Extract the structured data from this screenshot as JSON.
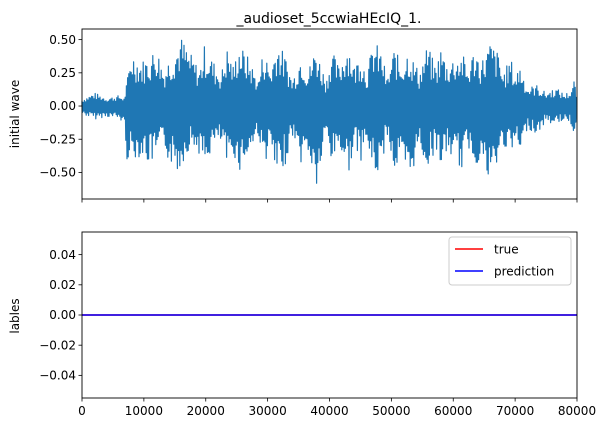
{
  "chart_data": [
    {
      "type": "line",
      "title": "_audioset_5ccwiaHEcIQ_1.",
      "ylabel": "initial wave",
      "xlim": [
        0,
        80000
      ],
      "ylim": [
        -0.7,
        0.58
      ],
      "y_ticks": [
        "0.50",
        "0.25",
        "0.00",
        "−0.25",
        "−0.50"
      ],
      "y_tick_values": [
        0.5,
        0.25,
        0.0,
        -0.25,
        -0.5
      ],
      "x_tick_labels_shown": false,
      "series": [
        {
          "color": "#1f77b4",
          "envelope": {
            "x": [
              0,
              2000,
              4000,
              6000,
              6800,
              7300,
              8000,
              9500,
              11000,
              12000,
              13200,
              14000,
              15500,
              16000,
              17500,
              19000,
              19800,
              21000,
              22500,
              23500,
              24500,
              25300,
              27000,
              28500,
              29300,
              30500,
              31500,
              33000,
              34000,
              35500,
              36500,
              37800,
              38300,
              39500,
              40300,
              41500,
              43000,
              44000,
              45000,
              46000,
              47200,
              48500,
              49300,
              50500,
              51500,
              52800,
              53300,
              54500,
              55800,
              57200,
              58000,
              59000,
              60300,
              61500,
              62300,
              63500,
              64500,
              65600,
              66000,
              67300,
              68000,
              69300,
              70000,
              70800,
              72000,
              73500,
              75000,
              76500,
              78000,
              79000,
              79500,
              80000
            ],
            "max": [
              0.05,
              0.1,
              0.06,
              0.08,
              0.06,
              0.2,
              0.42,
              0.34,
              0.38,
              0.46,
              0.28,
              0.36,
              0.48,
              0.53,
              0.4,
              0.28,
              0.46,
              0.36,
              0.25,
              0.45,
              0.3,
              0.48,
              0.36,
              0.2,
              0.43,
              0.28,
              0.51,
              0.36,
              0.2,
              0.42,
              0.26,
              0.46,
              0.37,
              0.2,
              0.43,
              0.3,
              0.5,
              0.3,
              0.42,
              0.26,
              0.5,
              0.4,
              0.2,
              0.45,
              0.32,
              0.45,
              0.38,
              0.26,
              0.46,
              0.3,
              0.45,
              0.33,
              0.38,
              0.4,
              0.28,
              0.45,
              0.34,
              0.45,
              0.49,
              0.4,
              0.25,
              0.36,
              0.24,
              0.32,
              0.14,
              0.16,
              0.1,
              0.14,
              0.09,
              0.12,
              0.2,
              0.1
            ],
            "min": [
              -0.06,
              -0.1,
              -0.08,
              -0.1,
              -0.14,
              -0.42,
              -0.4,
              -0.38,
              -0.45,
              -0.4,
              -0.3,
              -0.42,
              -0.5,
              -0.46,
              -0.3,
              -0.36,
              -0.5,
              -0.32,
              -0.28,
              -0.48,
              -0.36,
              -0.5,
              -0.38,
              -0.2,
              -0.45,
              -0.32,
              -0.6,
              -0.42,
              -0.22,
              -0.45,
              -0.35,
              -0.65,
              -0.55,
              -0.2,
              -0.44,
              -0.3,
              -0.52,
              -0.3,
              -0.42,
              -0.28,
              -0.55,
              -0.46,
              -0.2,
              -0.52,
              -0.42,
              -0.65,
              -0.52,
              -0.3,
              -0.48,
              -0.32,
              -0.46,
              -0.36,
              -0.4,
              -0.5,
              -0.3,
              -0.45,
              -0.4,
              -0.6,
              -0.58,
              -0.45,
              -0.28,
              -0.4,
              -0.26,
              -0.4,
              -0.16,
              -0.22,
              -0.12,
              -0.14,
              -0.1,
              -0.14,
              -0.2,
              -0.1
            ]
          }
        }
      ]
    },
    {
      "type": "line",
      "ylabel": "lables",
      "xlim": [
        0,
        80000
      ],
      "ylim": [
        -0.055,
        0.055
      ],
      "x_ticks": [
        "0",
        "10000",
        "20000",
        "30000",
        "40000",
        "50000",
        "60000",
        "70000",
        "80000"
      ],
      "x_tick_values": [
        0,
        10000,
        20000,
        30000,
        40000,
        50000,
        60000,
        70000,
        80000
      ],
      "y_ticks": [
        "0.04",
        "0.02",
        "0.00",
        "−0.02",
        "−0.04"
      ],
      "y_tick_values": [
        0.04,
        0.02,
        0.0,
        -0.02,
        -0.04
      ],
      "legend_position": "top-right",
      "series": [
        {
          "name": "true",
          "color": "#ff0000",
          "x": [
            0,
            80000
          ],
          "y": [
            0,
            0
          ]
        },
        {
          "name": "prediction",
          "color": "#0000ff",
          "x": [
            0,
            80000
          ],
          "y": [
            0,
            0
          ]
        }
      ]
    }
  ]
}
